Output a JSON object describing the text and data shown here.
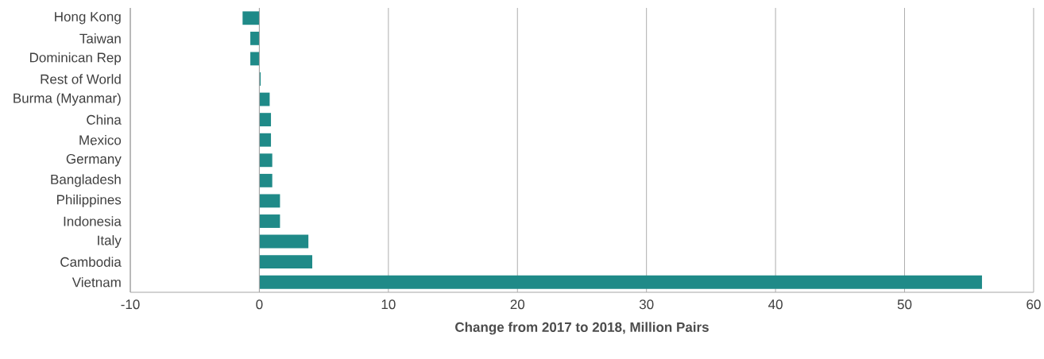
{
  "chart_data": {
    "type": "bar",
    "orientation": "horizontal",
    "xlabel": "Change from 2017 to 2018, Million Pairs",
    "categories": [
      "Hong Kong",
      "Taiwan",
      "Dominican Rep",
      "Rest of World",
      "Burma (Myanmar)",
      "China",
      "Mexico",
      "Germany",
      "Bangladesh",
      "Philippines",
      "Indonesia",
      "Italy",
      "Cambodia",
      "Vietnam"
    ],
    "values": [
      -1.3,
      -0.7,
      -0.7,
      0.1,
      0.8,
      0.9,
      0.9,
      1.0,
      1.0,
      1.6,
      1.6,
      3.8,
      4.1,
      56.0
    ],
    "color": "#1f8a88",
    "xlim": [
      -10,
      60
    ],
    "xticks": [
      -10,
      0,
      10,
      20,
      30,
      40,
      50,
      60
    ],
    "grid": "x"
  }
}
